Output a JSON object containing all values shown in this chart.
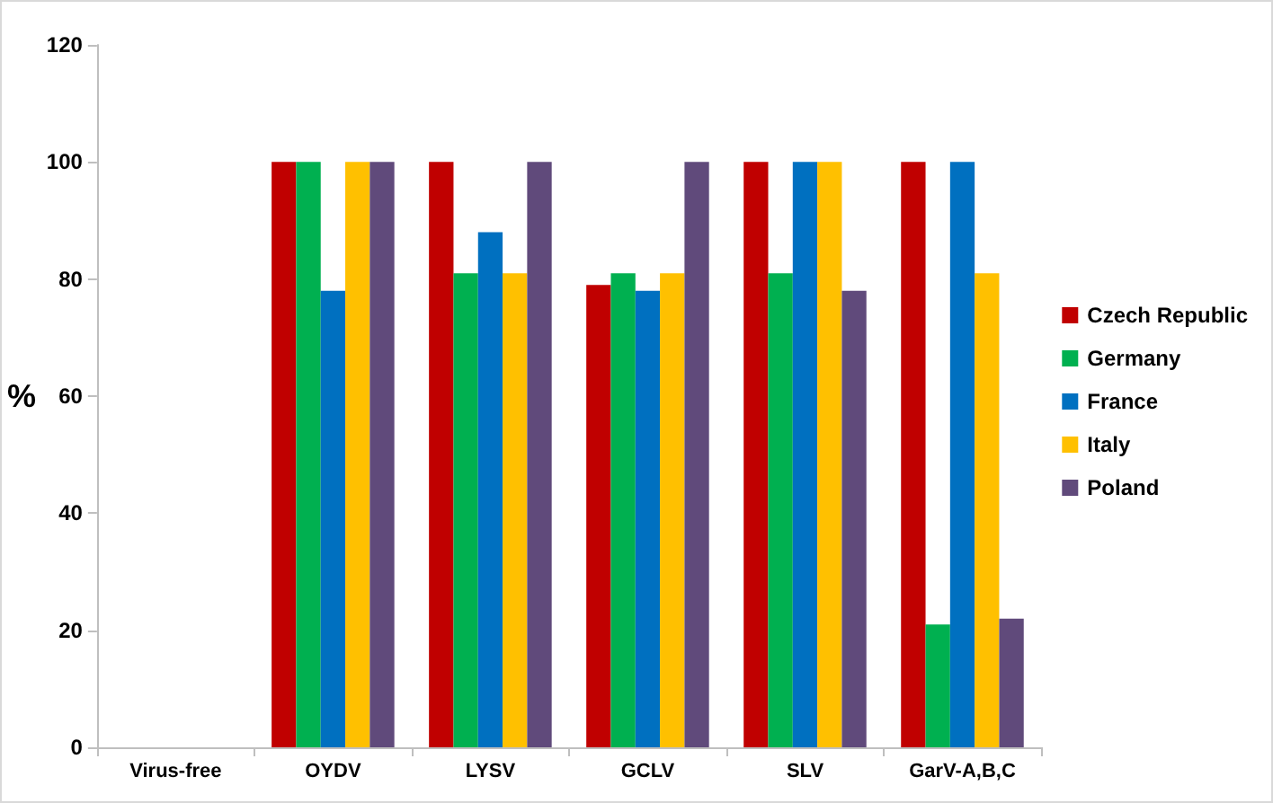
{
  "chart_data": {
    "type": "bar",
    "ylabel": "%",
    "categories": [
      "Virus-free",
      "OYDV",
      "LYSV",
      "GCLV",
      "SLV",
      "GarV-A,B,C"
    ],
    "series": [
      {
        "name": "Czech Republic",
        "color": "#c00000",
        "values": [
          0,
          100,
          100,
          79,
          100,
          100
        ]
      },
      {
        "name": "Germany",
        "color": "#00b050",
        "values": [
          0,
          100,
          81,
          81,
          81,
          21
        ]
      },
      {
        "name": "France",
        "color": "#0070c0",
        "values": [
          0,
          78,
          88,
          78,
          100,
          100
        ]
      },
      {
        "name": "Italy",
        "color": "#ffc000",
        "values": [
          0,
          100,
          81,
          81,
          100,
          81
        ]
      },
      {
        "name": "Poland",
        "color": "#604a7b",
        "values": [
          0,
          100,
          100,
          100,
          78,
          22
        ]
      }
    ],
    "ylim": [
      0,
      120
    ],
    "yticks": [
      0,
      20,
      40,
      60,
      80,
      100,
      120
    ],
    "grid": false,
    "legend": "right"
  }
}
